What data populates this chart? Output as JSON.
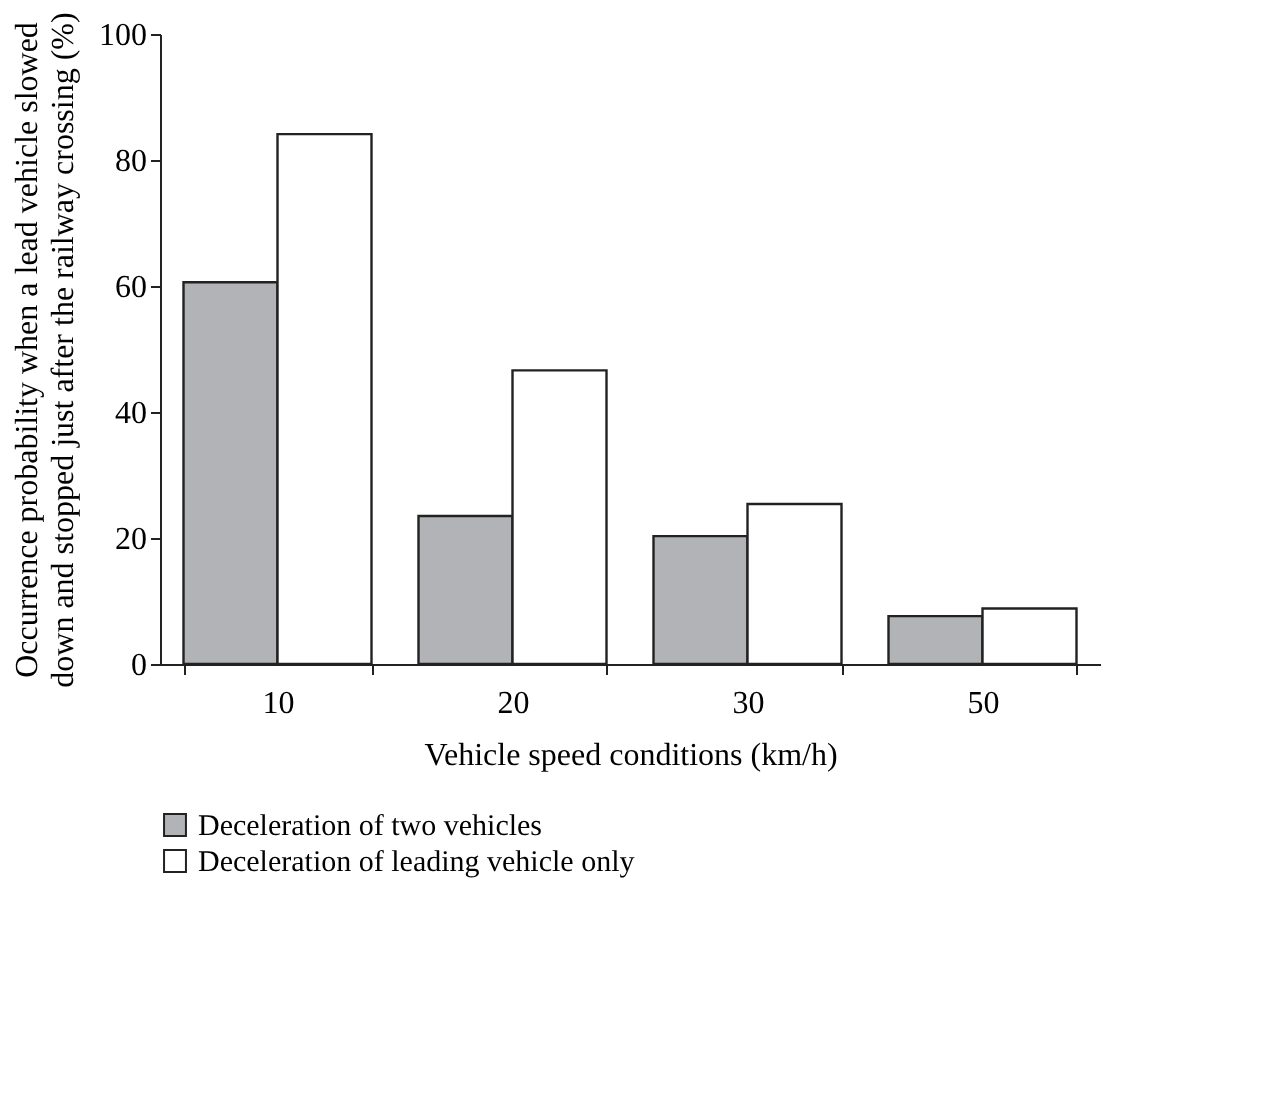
{
  "chart_data": {
    "type": "bar",
    "xlabel": "Vehicle speed conditions (km/h)",
    "ylabel": "Occurrence probability when a lead vehicle slowed\ndown and stopped just after the railway crossing (%)",
    "categories": [
      "10",
      "20",
      "30",
      "50"
    ],
    "series": [
      {
        "name": "Deceleration of two vehicles",
        "color": "#b2b3b6",
        "values": [
          60.6,
          23.5,
          20.3,
          7.6
        ]
      },
      {
        "name": "Deceleration of leading vehicle only",
        "color": "#ffffff",
        "values": [
          84.1,
          46.6,
          25.4,
          8.8
        ]
      }
    ],
    "ylim": [
      0,
      100
    ],
    "yticks": [
      0,
      20,
      40,
      60,
      80,
      100
    ],
    "grid": false,
    "legend": "bottom"
  }
}
